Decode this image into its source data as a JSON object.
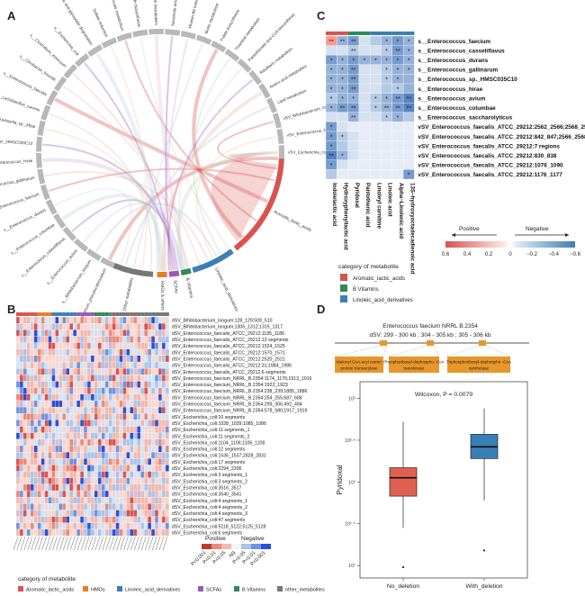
{
  "panels": {
    "a": "A",
    "b": "B",
    "c": "C",
    "d": "D"
  },
  "colors": {
    "aromatic": "#d9534f",
    "hmos": "#e67e22",
    "linoleic": "#3b7fb7",
    "scfas": "#9b59b6",
    "bvit": "#2e8b57",
    "other": "#777777",
    "pos": "#c0392b",
    "neg": "#2f6fb0",
    "box_no": "#e06050",
    "box_with": "#3b7fb7",
    "gene": "#e8962a"
  },
  "panelA": {
    "taxa": [
      "s__Bifidobacterium_pseudocatenulatum",
      "s__Bifidobacterium_longum",
      "s__Enterococcus_avium",
      "s__Enterococcus_casseliflavus",
      "s__Enterococcus_columbae",
      "s__Enterococcus_durans",
      "s__Enterococcus_faecium",
      "s__Enterococcus_gallinarum",
      "s__Enterococcus_hirae",
      "s__Enterococcus_sp._HMSC035C10",
      "s__Klebsiella_sp._M5al",
      "s__Lactobacillus_ruminis",
      "s__Enterococcus_faecalis",
      "s__Citrobacter_freundii",
      "s__Clostridium_innocuum",
      "s__Escherichia_coli",
      "Glycolate and glyoxylate degradation",
      "Sulfate reduction",
      "Butanoate metabolism",
      "Lipopolysaccharide biosynthesis",
      "Carbohydrate metabolism",
      "Nicotinate and nicotinamide metabolism",
      "Vitamin B6 metabolism",
      "Biotin metabolism",
      "Folate biosynthesis",
      "Thiamine metabolism",
      "Pantothenate and CoA biosynthesis",
      "Riboflavin metabolism",
      "Amino acid metabolism",
      "Lipid metabolism",
      "vSV_Bifidobacterium_longum",
      "vSV_Enterococcus_faecalis_ATCC_29212",
      "vSV_Escherichia_coli"
    ],
    "metabolites": [
      "Aromatic_lactic_acids",
      "Linoleic_acid_derivatives",
      "B vitamins",
      "SCFAs",
      "HMOs",
      "Other metabolites"
    ],
    "metabolite_labels": [
      "Aromatic_lactic_acids",
      "Linoleic_acid_derivatives",
      "B Vitamins",
      "SCFAs",
      "HMOs & others",
      "Other metabolites"
    ]
  },
  "panelB": {
    "rows": [
      "dSV_Bifidobacterium_longum:128_129;509_510",
      "dSV_Bifidobacterium_longum:1306_1312;1315_1317",
      "dSV_Enterococcus_faecalis_ATCC_29212:1185_1186",
      "dSV_Enterococcus_faecalis_ATCC_29212:12 segments",
      "dSV_Enterococcus_faecalis_ATCC_29212:1524_1525",
      "dSV_Enterococcus_faecalis_ATCC_29212:1570_1571",
      "dSV_Enterococcus_faecalis_ATCC_29212:2520_2521",
      "dSV_Enterococcus_faecalis_ATCC_29212:31;1984_1986",
      "dSV_Enterococcus_faecalis_ATCC_29212:6 segments",
      "dSV_Enterococcus_faecium_NRRL_B.2354:1174_1176;1913_1916",
      "dSV_Enterococcus_faecium_NRRL_B.2354:1922_1923",
      "dSV_Enterococcus_faecium_NRRL_B.2354:238_239;1885_1886",
      "dSV_Enterococcus_faecium_NRRL_B.2354:254_255;687_688",
      "dSV_Enterococcus_faecium_NRRL_B.2354:299_306;492_494",
      "dSV_Enterococcus_faecium_NRRL_B.2354:578_580;1917_1919",
      "dSV_Escherichia_coli:10 segments",
      "dSV_Escherichia_coli:1038_1039;1085_1086",
      "dSV_Escherichia_coli:11 segments_1",
      "dSV_Escherichia_coli:11 segments_2",
      "dSV_Escherichia_coli:1104_1106;1106_1108",
      "dSV_Escherichia_coli:12 segments",
      "dSV_Escherichia_coli:1536_1537;2828_2831",
      "dSV_Escherichia_coli:17 segments",
      "dSV_Escherichia_coli:2294_2206",
      "dSV_Escherichia_coli:3 segments_1",
      "dSV_Escherichia_coli:3 segments_2",
      "dSV_Escherichia_coli:3516_3517",
      "dSV_Escherichia_coli:3540_3541",
      "dSV_Escherichia_coli:4 segments_1",
      "dSV_Escherichia_coli:4 segments_2",
      "dSV_Escherichia_coli:4 segments_3",
      "dSV_Escherichia_coli:47 segments",
      "dSV_Escherichia_coli:5118_5122;5125_5128",
      "dSV_Escherichia_coli:6 segments"
    ],
    "legend_pos": "Positive",
    "legend_neg": "Negative",
    "p_labels": [
      "P<0.001",
      "P<0.01",
      "P<0.05",
      "NS",
      "P<0.05",
      "P<0.01",
      "P<0.001"
    ]
  },
  "category_legend": {
    "title": "category of metabolite",
    "items": [
      {
        "label": "Aromatic_lactic_acids",
        "color": "#d9534f"
      },
      {
        "label": "HMOs",
        "color": "#e67e22"
      },
      {
        "label": "Linoleic_acid_derivatives",
        "color": "#3b7fb7"
      },
      {
        "label": "SCFAs",
        "color": "#9b59b6"
      },
      {
        "label": "B Vitamins",
        "color": "#2e8b57"
      },
      {
        "label": "other_metabolites",
        "color": "#777777"
      }
    ]
  },
  "panelC": {
    "rows": [
      "s__Enterococcus_faecium",
      "s__Enterococcus_casseliflavus",
      "s__Enterococcus_durans",
      "s__Enterococcus_gallinarum",
      "s__Enterococcus_sp._HMSC035C10",
      "s__Enterococcus_hirae",
      "s__Enterococcus_avium",
      "s__Enterococcus_columbae",
      "s__Enterococcus_saccharolyticus",
      "vSV_Enterococcus_faecalis_ATCC_29212:2562_2566;2568_2578",
      "vSV_Enterococcus_faecalis_ATCC_29212:842_847;2566_2568",
      "vSV_Enterococcus_faecalis_ATCC_29212:7 regions",
      "vSV_Enterococcus_faecalis_ATCC_29212:830_838",
      "vSV_Enterococcus_faecalis_ATCC_29212:1076_1090",
      "vSV_Enterococcus_faecalis_ATCC_29212:1176_1177"
    ],
    "cols": [
      "Indolelactic acid",
      "Hydroxyphenyllactic acid",
      "Pyridoxal",
      "Pantothenic acid",
      "Linoleyl carnitine",
      "Linoleic acid",
      "Alpha−Linolenic acid",
      "13S−hydroxyoctadecadienoic acid"
    ],
    "col_groups": [
      "#d9534f",
      "#d9534f",
      "#2e8b57",
      "#2e8b57",
      "#3b7fb7",
      "#3b7fb7",
      "#3b7fb7",
      "#3b7fb7"
    ],
    "values": [
      [
        0.4,
        -0.3,
        -0.4,
        -0.1,
        -0.2,
        -0.3,
        -0.4,
        -0.3
      ],
      [
        -0.1,
        -0.1,
        -0.2,
        -0.1,
        -0.1,
        -0.2,
        -0.4,
        -0.3
      ],
      [
        -0.4,
        -0.3,
        -0.4,
        -0.3,
        -0.3,
        -0.3,
        -0.4,
        -0.3
      ],
      [
        -0.3,
        -0.3,
        -0.4,
        -0.1,
        -0.1,
        -0.2,
        -0.3,
        -0.3
      ],
      [
        -0.3,
        -0.3,
        -0.4,
        -0.1,
        -0.1,
        -0.2,
        -0.3,
        -0.3
      ],
      [
        -0.3,
        -0.3,
        -0.4,
        -0.1,
        -0.1,
        -0.2,
        -0.2,
        -0.3
      ],
      [
        -0.2,
        -0.3,
        -0.3,
        -0.1,
        -0.2,
        -0.3,
        -0.4,
        -0.5
      ],
      [
        -0.3,
        -0.4,
        -0.4,
        -0.1,
        -0.2,
        -0.3,
        -0.4,
        -0.5
      ],
      [
        -0.1,
        -0.1,
        -0.3,
        -0.1,
        -0.1,
        -0.2,
        -0.3,
        -0.2
      ],
      [
        -0.4,
        -0.1,
        -0.05,
        -0.05,
        -0.05,
        -0.05,
        -0.05,
        -0.05
      ],
      [
        -0.4,
        -0.2,
        -0.1,
        -0.05,
        -0.05,
        -0.05,
        -0.05,
        -0.05
      ],
      [
        -0.4,
        -0.2,
        -0.1,
        -0.05,
        -0.05,
        -0.05,
        -0.05,
        -0.05
      ],
      [
        -0.5,
        -0.3,
        -0.1,
        -0.05,
        -0.05,
        -0.05,
        -0.05,
        -0.05
      ],
      [
        -0.4,
        -0.1,
        -0.05,
        -0.05,
        -0.05,
        -0.05,
        -0.05,
        -0.05
      ],
      [
        -0.2,
        -0.05,
        -0.05,
        -0.05,
        -0.05,
        -0.05,
        -0.05,
        -0.4
      ]
    ],
    "stars": [
      [
        "**",
        "**",
        "**",
        "",
        "",
        "*",
        "*",
        "*"
      ],
      [
        "",
        "",
        "**",
        "",
        "",
        "*",
        "**",
        "*"
      ],
      [
        "*",
        "*",
        "*",
        "*",
        "*",
        "*",
        "*",
        "*"
      ],
      [
        "*",
        "*",
        "**",
        "",
        "",
        "*",
        "*",
        "*"
      ],
      [
        "*",
        "*",
        "**",
        "",
        "",
        "*",
        "*",
        ""
      ],
      [
        "*",
        "*",
        "**",
        "",
        "",
        "",
        "*",
        ""
      ],
      [
        "*",
        "*",
        "*",
        "",
        "*",
        "*",
        "**",
        "**"
      ],
      [
        "*",
        "**",
        "**",
        "",
        "*",
        "**",
        "**",
        "**"
      ],
      [
        "",
        "",
        "**",
        "",
        "",
        "*",
        "*",
        ""
      ],
      [
        "*",
        "",
        "",
        "",
        "",
        "",
        "",
        ""
      ],
      [
        "*",
        "*",
        "",
        "",
        "",
        "",
        "",
        ""
      ],
      [
        "*",
        "",
        "",
        "",
        "",
        "",
        "",
        ""
      ],
      [
        "**",
        "*",
        "",
        "",
        "",
        "",
        "",
        ""
      ],
      [
        "*",
        "",
        "",
        "",
        "",
        "",
        "",
        ""
      ],
      [
        "",
        "",
        "",
        "",
        "",
        "",
        "",
        "*"
      ]
    ],
    "legend_pos": "Positive",
    "legend_neg": "Negative",
    "scale_labels": [
      "0.6",
      "0.4",
      "0.2",
      "0",
      "−0.2",
      "−0.4",
      "−0.6"
    ],
    "legend_title": "category of metabolite",
    "legend_items": [
      {
        "label": "Aromatic_lactic_acids",
        "color": "#d9534f"
      },
      {
        "label": "B Vitamins",
        "color": "#2e8b57"
      },
      {
        "label": "Linoleic_acid_derivatives",
        "color": "#3b7fb7"
      }
    ]
  },
  "panelD": {
    "title": "Enterococcus faecium NRRL B.2354",
    "subtitle": "dSV: 299 - 300 kb ; 304 - 305 kb ; 305 - 306 kb",
    "genes": [
      "Malonyl CoA-acyl carrier protein transacylase",
      "Phosphoribosyl-dephospho -CoA transferase",
      "Triphosphoribosyl-dephospho -CoA synthetase"
    ],
    "chart_data": {
      "type": "box",
      "title": "Wilcoxon, P = 0.0079",
      "ylabel": "Pyridoxal",
      "categories": [
        "No_deletion",
        "With_deletion"
      ],
      "yticks": [
        "10¹",
        "10¹·⁵",
        "10²",
        "10²·⁵",
        "10³"
      ],
      "ytick_values": [
        1,
        1.5,
        2,
        2.5,
        3
      ],
      "ylim": [
        0.85,
        3.2
      ],
      "boxes": [
        {
          "name": "No_deletion",
          "whisker_low": 1.45,
          "q1": 1.83,
          "median": 2.05,
          "q3": 2.17,
          "whisker_high": 2.72,
          "outliers": [
            0.98
          ]
        },
        {
          "name": "With_deletion",
          "whisker_low": 1.78,
          "q1": 2.28,
          "median": 2.42,
          "q3": 2.57,
          "whisker_high": 2.88,
          "outliers": [
            1.18
          ]
        }
      ]
    }
  }
}
